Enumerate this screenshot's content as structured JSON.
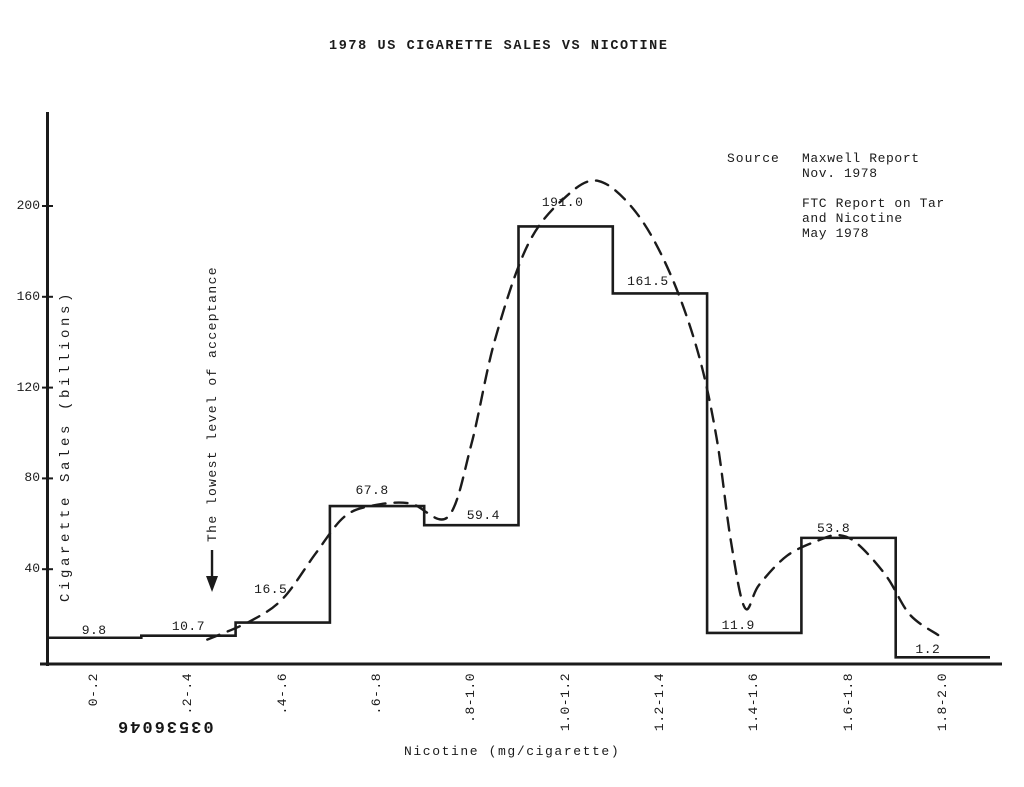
{
  "page": {
    "stamp": "03536046",
    "ink_color": "#1b1b1b",
    "background": "#ffffff"
  },
  "source_note": {
    "label": "Source",
    "lines": [
      "Maxwell Report",
      "Nov. 1978",
      "",
      "FTC Report on Tar",
      "and Nicotine",
      "May 1978"
    ]
  },
  "annotation": {
    "text": "The lowest level of acceptance",
    "arrow": "down-arrow"
  },
  "chart_data": {
    "type": "bar",
    "style": "step-outline histogram with hand-drawn dashed trend curve",
    "title": "1978 US CIGARETTE SALES VS NICOTINE",
    "xlabel": "Nicotine (mg/cigarette)",
    "ylabel": "Cigarette Sales (billions)",
    "categories": [
      "0-.2",
      ".2-.4",
      ".4-.6",
      ".6-.8",
      ".8-1.0",
      "1.0-1.2",
      "1.2-1.4",
      "1.4-1.6",
      "1.6-1.8",
      "1.8-2.0"
    ],
    "values": [
      9.8,
      10.7,
      16.5,
      67.8,
      59.4,
      191.0,
      161.5,
      11.9,
      53.8,
      1.2
    ],
    "value_labels": [
      "9.8",
      "10.7",
      "16.5",
      "67.8",
      "59.4",
      "191.0",
      "161.5",
      "11.9",
      "53.8",
      "1.2"
    ],
    "x_bin_edges_mg": [
      0,
      0.2,
      0.4,
      0.6,
      0.8,
      1.0,
      1.2,
      1.4,
      1.6,
      1.8,
      2.0
    ],
    "y_ticks": [
      40,
      80,
      120,
      160,
      200
    ],
    "ylim": [
      0,
      230
    ],
    "grid": false,
    "legend": "none",
    "trend_curve_points_mg_billions": [
      [
        0.34,
        9
      ],
      [
        0.43,
        17
      ],
      [
        0.5,
        27
      ],
      [
        0.57,
        47
      ],
      [
        0.63,
        63
      ],
      [
        0.69,
        68
      ],
      [
        0.77,
        69
      ],
      [
        0.85,
        63
      ],
      [
        0.9,
        95
      ],
      [
        0.95,
        141
      ],
      [
        1.02,
        183
      ],
      [
        1.1,
        204
      ],
      [
        1.17,
        211
      ],
      [
        1.25,
        197
      ],
      [
        1.32,
        171
      ],
      [
        1.38,
        136
      ],
      [
        1.42,
        98
      ],
      [
        1.45,
        53
      ],
      [
        1.48,
        23
      ],
      [
        1.51,
        33
      ],
      [
        1.57,
        46
      ],
      [
        1.64,
        53
      ],
      [
        1.68,
        55
      ],
      [
        1.72,
        51
      ],
      [
        1.78,
        37
      ],
      [
        1.83,
        20
      ],
      [
        1.89,
        11
      ]
    ],
    "annotation_arrow_x_mg": 0.35
  }
}
